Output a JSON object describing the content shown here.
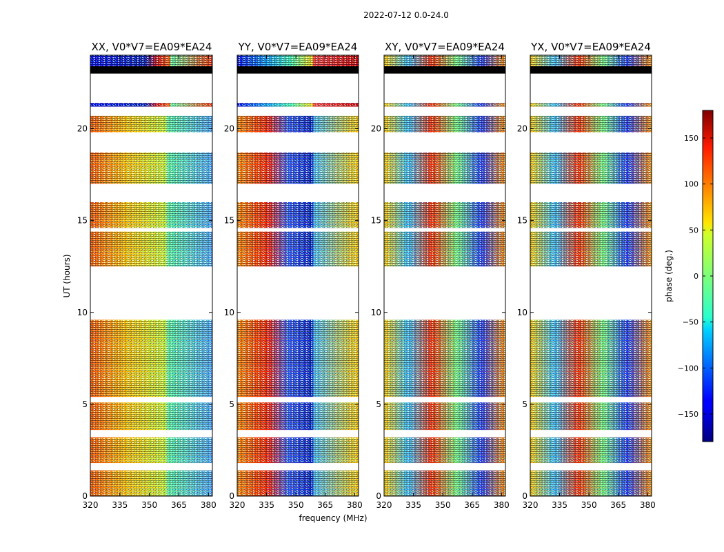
{
  "figure_title": "2022-07-12 0.0-24.0",
  "chart_data": {
    "type": "heatmap",
    "title": "2022-07-12 0.0-24.0",
    "xlabel": "frequency (MHz)",
    "ylabel": "UT (hours)",
    "xlim": [
      320,
      382
    ],
    "ylim": [
      0,
      24
    ],
    "x_ticks": [
      320,
      335,
      350,
      365,
      380
    ],
    "y_ticks": [
      0,
      5,
      10,
      15,
      20
    ],
    "panels": [
      {
        "title": "XX, V0*V7=EA09*EA24",
        "pol": "XX"
      },
      {
        "title": "YY, V0*V7=EA09*EA24",
        "pol": "YY"
      },
      {
        "title": "XY, V0*V7=EA09*EA24",
        "pol": "XY"
      },
      {
        "title": "YX, V0*V7=EA09*EA24",
        "pol": "YX"
      }
    ],
    "data_time_ranges_hours": [
      [
        0.0,
        1.4
      ],
      [
        1.8,
        3.2
      ],
      [
        3.6,
        5.1
      ],
      [
        5.4,
        7.0
      ],
      [
        7.0,
        9.6
      ],
      [
        12.5,
        14.4
      ],
      [
        14.6,
        16.0
      ],
      [
        17.0,
        18.7
      ],
      [
        19.8,
        20.7
      ],
      [
        21.2,
        21.4
      ],
      [
        23.0,
        23.4
      ],
      [
        23.4,
        24.0
      ]
    ],
    "colorbar": {
      "label": "phase (deg.)",
      "range": [
        -180,
        180
      ],
      "ticks": [
        -150,
        -100,
        -50,
        0,
        50,
        100,
        150
      ],
      "colormap": "jet"
    }
  }
}
